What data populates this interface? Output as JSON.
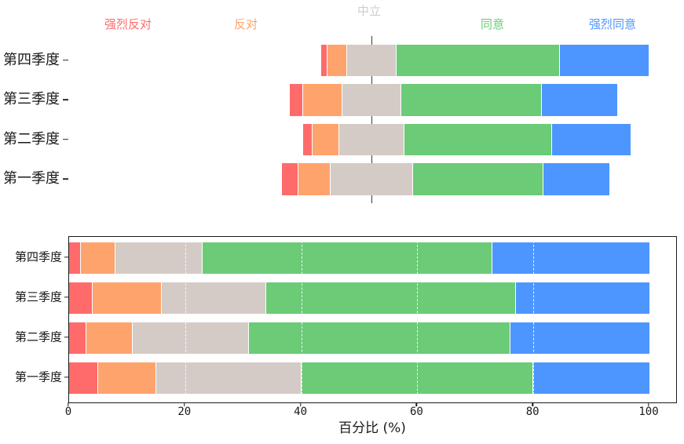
{
  "colors": {
    "strongly_disagree": "#FF6B6B",
    "disagree": "#FFA36C",
    "neutral": "#D4CBC7",
    "agree": "#6BCB77",
    "strongly_agree": "#4D96FF",
    "center_line": "#3a3a3a",
    "axis_text": "#1a1a1a",
    "grid_in_gaps": "#e2ddda",
    "grid_over_bars": "#ffffff"
  },
  "chart_data": [
    {
      "type": "bar",
      "variant": "diverging-likert",
      "orientation": "horizontal",
      "title": "",
      "categories": [
        "第四季度",
        "第三季度",
        "第二季度",
        "第一季度"
      ],
      "series": [
        {
          "name": "强烈反对",
          "color": "#FF6B6B",
          "values": [
            2,
            4,
            3,
            5
          ]
        },
        {
          "name": "反对",
          "color": "#FFA36C",
          "values": [
            6,
            12,
            8,
            10
          ]
        },
        {
          "name": "中立",
          "color": "#D4CBC7",
          "values": [
            15,
            18,
            20,
            25
          ]
        },
        {
          "name": "同意",
          "color": "#6BCB77",
          "values": [
            50,
            43,
            45,
            40
          ]
        },
        {
          "name": "强烈同意",
          "color": "#4D96FF",
          "values": [
            27,
            23,
            24,
            20
          ]
        }
      ],
      "center_label": "中立",
      "center_alignment": "middle-of-neutral",
      "legend_position": "top",
      "axes_visible": false,
      "grid": false
    },
    {
      "type": "bar",
      "variant": "stacked-100",
      "orientation": "horizontal",
      "title": "",
      "categories": [
        "第四季度",
        "第三季度",
        "第二季度",
        "第一季度"
      ],
      "series": [
        {
          "name": "强烈反对",
          "color": "#FF6B6B",
          "values": [
            2,
            4,
            3,
            5
          ]
        },
        {
          "name": "反对",
          "color": "#FFA36C",
          "values": [
            6,
            12,
            8,
            10
          ]
        },
        {
          "name": "中立",
          "color": "#D4CBC7",
          "values": [
            15,
            18,
            20,
            25
          ]
        },
        {
          "name": "同意",
          "color": "#6BCB77",
          "values": [
            50,
            43,
            45,
            40
          ]
        },
        {
          "name": "强烈同意",
          "color": "#4D96FF",
          "values": [
            27,
            23,
            24,
            20
          ]
        }
      ],
      "xlabel": "百分比 (%)",
      "xticks": [
        0,
        20,
        40,
        60,
        80,
        100
      ],
      "xlim": [
        0,
        105
      ],
      "grid": true,
      "grid_style": "dashed",
      "frame": true
    }
  ]
}
